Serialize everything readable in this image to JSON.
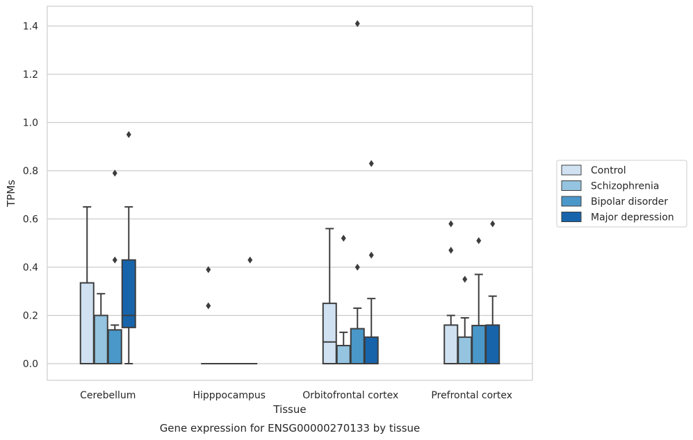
{
  "chart_data": {
    "type": "box",
    "caption": "Gene expression for ENSG00000270133 by tissue",
    "xlabel": "Tissue",
    "ylabel": "TPMs",
    "ylim": [
      -0.07,
      1.48
    ],
    "yticks": [
      "0.0",
      "0.2",
      "0.4",
      "0.6",
      "0.8",
      "1.0",
      "1.2",
      "1.4"
    ],
    "ytick_values": [
      0,
      0.2,
      0.4,
      0.6,
      0.8,
      1.0,
      1.2,
      1.4
    ],
    "grid": "horizontal",
    "legend_position": "right",
    "categories": [
      "Cerebellum",
      "Hipppocampus",
      "Orbitofrontal cortex",
      "Prefrontal cortex"
    ],
    "series": [
      {
        "name": "Control",
        "color": "#d0e1f2",
        "boxes": [
          {
            "whislo": 0,
            "q1": 0,
            "med": 0,
            "q3": 0.335,
            "whishi": 0.65,
            "fliers": []
          },
          {
            "whislo": 0,
            "q1": 0,
            "med": 0,
            "q3": 0,
            "whishi": 0,
            "fliers": [
              0.24,
              0.39
            ]
          },
          {
            "whislo": 0,
            "q1": 0,
            "med": 0.09,
            "q3": 0.25,
            "whishi": 0.56,
            "fliers": []
          },
          {
            "whislo": 0,
            "q1": 0,
            "med": 0,
            "q3": 0.16,
            "whishi": 0.2,
            "fliers": [
              0.47,
              0.58
            ]
          }
        ]
      },
      {
        "name": "Schizophrenia",
        "color": "#94c4df",
        "boxes": [
          {
            "whislo": 0,
            "q1": 0,
            "med": 0,
            "q3": 0.2,
            "whishi": 0.29,
            "fliers": []
          },
          {
            "whislo": 0,
            "q1": 0,
            "med": 0,
            "q3": 0,
            "whishi": 0,
            "fliers": []
          },
          {
            "whislo": 0,
            "q1": 0,
            "med": 0,
            "q3": 0.075,
            "whishi": 0.13,
            "fliers": [
              0.52
            ]
          },
          {
            "whislo": 0,
            "q1": 0,
            "med": 0,
            "q3": 0.11,
            "whishi": 0.19,
            "fliers": [
              0.35
            ]
          }
        ]
      },
      {
        "name": "Bipolar disorder",
        "color": "#4a98c9",
        "boxes": [
          {
            "whislo": 0,
            "q1": 0,
            "med": 0,
            "q3": 0.14,
            "whishi": 0.16,
            "fliers": [
              0.43,
              0.79
            ]
          },
          {
            "whislo": 0,
            "q1": 0,
            "med": 0,
            "q3": 0,
            "whishi": 0,
            "fliers": []
          },
          {
            "whislo": 0,
            "q1": 0,
            "med": 0,
            "q3": 0.145,
            "whishi": 0.23,
            "fliers": [
              0.4,
              1.41
            ]
          },
          {
            "whislo": 0,
            "q1": 0,
            "med": 0,
            "q3": 0.158,
            "whishi": 0.37,
            "fliers": [
              0.51
            ]
          }
        ]
      },
      {
        "name": "Major depression",
        "color": "#1764ab",
        "boxes": [
          {
            "whislo": 0,
            "q1": 0.15,
            "med": 0.2,
            "q3": 0.43,
            "whishi": 0.65,
            "fliers": [
              0.95
            ]
          },
          {
            "whislo": 0,
            "q1": 0,
            "med": 0,
            "q3": 0,
            "whishi": 0,
            "fliers": [
              0.43
            ]
          },
          {
            "whislo": 0,
            "q1": 0,
            "med": 0,
            "q3": 0.11,
            "whishi": 0.27,
            "fliers": [
              0.45,
              0.83
            ]
          },
          {
            "whislo": 0,
            "q1": 0,
            "med": 0,
            "q3": 0.16,
            "whishi": 0.28,
            "fliers": [
              0.58
            ]
          }
        ]
      }
    ]
  }
}
